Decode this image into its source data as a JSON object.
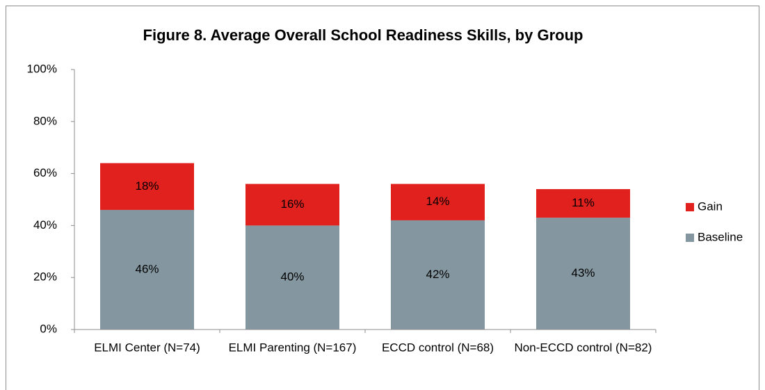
{
  "chart_data": {
    "type": "stacked_bar",
    "title": "Figure 8. Average Overall School Readiness Skills, by Group",
    "categories": [
      "ELMI Center (N=74)",
      "ELMI Parenting (N=167)",
      "ECCD control (N=68)",
      "Non-ECCD control (N=82)"
    ],
    "series": [
      {
        "name": "Baseline",
        "color": "#8497a0",
        "values": [
          46,
          40,
          42,
          43
        ],
        "value_labels": [
          "46%",
          "40%",
          "42%",
          "43%"
        ]
      },
      {
        "name": "Gain",
        "color": "#e0211d",
        "values": [
          18,
          16,
          14,
          11
        ],
        "value_labels": [
          "18%",
          "16%",
          "14%",
          "11%"
        ]
      }
    ],
    "ylim": [
      0,
      100
    ],
    "yticks": [
      {
        "value": 0,
        "label": "0%"
      },
      {
        "value": 20,
        "label": "20%"
      },
      {
        "value": 40,
        "label": "40%"
      },
      {
        "value": 60,
        "label": "60%"
      },
      {
        "value": 80,
        "label": "80%"
      },
      {
        "value": 100,
        "label": "100%"
      }
    ],
    "grid": false,
    "legend": "right"
  }
}
